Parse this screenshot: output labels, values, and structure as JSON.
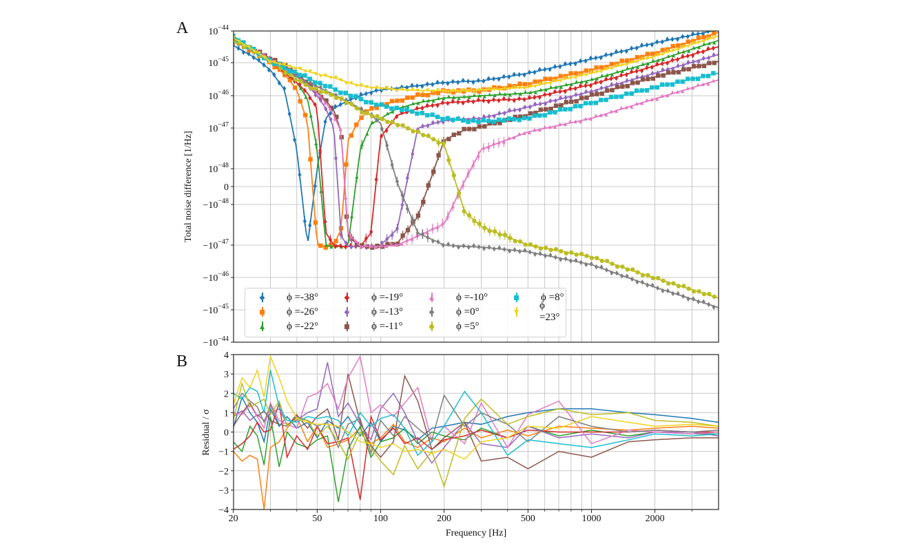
{
  "chart_data": [
    {
      "panel_label": "A",
      "type": "line",
      "xlabel": "Frequency [Hz]",
      "ylabel": "Total noise difference [1/Hz]",
      "xscale": "log",
      "yscale": "symlog",
      "xlim": [
        20,
        4000
      ],
      "ylim": [
        -1e-44,
        1e-44
      ],
      "grid": true,
      "legend_position": "bottom-left",
      "yticks": [
        {
          "value": 1e-44,
          "prefix": "",
          "base": "10",
          "exp": "−44"
        },
        {
          "value": 1e-45,
          "prefix": "",
          "base": "10",
          "exp": "−45"
        },
        {
          "value": 1e-46,
          "prefix": "",
          "base": "10",
          "exp": "−46"
        },
        {
          "value": 1e-47,
          "prefix": "",
          "base": "10",
          "exp": "−47"
        },
        {
          "value": 1e-48,
          "prefix": "",
          "base": "10",
          "exp": "−48"
        },
        {
          "value": 0,
          "prefix": "",
          "base": "0",
          "exp": ""
        },
        {
          "value": -1e-48,
          "prefix": "−",
          "base": "10",
          "exp": "−48"
        },
        {
          "value": -1e-47,
          "prefix": "−",
          "base": "10",
          "exp": "−47"
        },
        {
          "value": -1e-46,
          "prefix": "−",
          "base": "10",
          "exp": "−46"
        },
        {
          "value": -1e-45,
          "prefix": "−",
          "base": "10",
          "exp": "−45"
        },
        {
          "value": -1e-44,
          "prefix": "−",
          "base": "10",
          "exp": "−44"
        }
      ],
      "x": [
        20,
        25,
        30,
        35,
        40,
        45,
        50,
        55,
        60,
        65,
        70,
        80,
        90,
        100,
        120,
        150,
        200,
        250,
        300,
        500,
        1000,
        2000,
        4000
      ],
      "series": [
        {
          "name": "ϕ =-38°",
          "color": "#1f77b4",
          "marker": "diamond",
          "values": [
            3.5e-45,
            1.5e-45,
            6e-46,
            1.5e-46,
            3e-48,
            -1e-47,
            1e-48,
            2e-47,
            4e-47,
            5.5e-47,
            7e-47,
            1e-46,
            1.3e-46,
            1.5e-46,
            1.7e-46,
            2e-46,
            2.5e-46,
            2.7e-46,
            2.8e-46,
            4.8e-46,
            1.3e-45,
            4.2e-45,
            1.1e-44
          ]
        },
        {
          "name": "ϕ =-26°",
          "color": "#ff7f0e",
          "marker": "square",
          "values": [
            5e-45,
            2.2e-45,
            1e-45,
            4.5e-46,
            1.5e-46,
            1.5e-47,
            -1e-47,
            -1.1e-47,
            -1e-47,
            -4e-48,
            5e-48,
            2e-47,
            4e-47,
            5e-47,
            7e-47,
            1e-46,
            1.35e-46,
            1.4e-46,
            1.45e-46,
            2.3e-46,
            6e-46,
            2e-45,
            9e-45
          ]
        },
        {
          "name": "ϕ =-22°",
          "color": "#2ca02c",
          "marker": "triangle",
          "values": [
            5.5e-45,
            2.5e-45,
            1.2e-45,
            6e-46,
            2.5e-46,
            8e-47,
            3e-48,
            -1e-47,
            -1.1e-47,
            -1.1e-47,
            -1.1e-47,
            3e-48,
            1.3e-47,
            2e-47,
            4e-47,
            6e-47,
            8.5e-47,
            9e-47,
            1e-46,
            1.2e-46,
            3e-46,
            1.1e-45,
            5e-45
          ]
        },
        {
          "name": "ϕ =-19°",
          "color": "#d62728",
          "marker": "diamond",
          "values": [
            5e-45,
            2.3e-45,
            1.1e-45,
            5e-46,
            2.5e-46,
            1.2e-46,
            4e-47,
            -5e-48,
            -1e-47,
            -1.1e-47,
            -1.1e-47,
            -1.1e-47,
            -5e-48,
            6e-48,
            2.5e-47,
            4e-47,
            6e-47,
            6.5e-47,
            7e-47,
            8e-47,
            2.2e-46,
            8e-46,
            3.2e-45
          ]
        },
        {
          "name": "ϕ =-13°",
          "color": "#9467bd",
          "marker": "diamond",
          "values": [
            5e-45,
            2.5e-45,
            1.3e-45,
            7e-46,
            4e-46,
            2e-46,
            1e-46,
            4e-47,
            1e-47,
            -6e-48,
            -1.1e-47,
            -1.1e-47,
            -1.1e-47,
            -1e-47,
            -4e-48,
            1e-47,
            1.7e-47,
            1.9e-47,
            2e-47,
            4.5e-47,
            1.35e-46,
            4.8e-46,
            1.8e-45
          ]
        },
        {
          "name": "ϕ =-11°",
          "color": "#8c564b",
          "marker": "square",
          "values": [
            5e-45,
            2.5e-45,
            1.4e-45,
            8e-46,
            4.5e-46,
            2.5e-46,
            1.3e-46,
            7e-47,
            3.5e-47,
            8e-48,
            -6e-48,
            -1.1e-47,
            -1.1e-47,
            -1.1e-47,
            -9e-48,
            -2e-48,
            5e-48,
            9e-48,
            1.1e-47,
            2.6e-47,
            1e-46,
            3.7e-46,
            1.1e-45
          ]
        },
        {
          "name": "ϕ =-10°",
          "color": "#e377c2",
          "marker": "triangle",
          "values": [
            5e-45,
            2.5e-45,
            1.3e-45,
            7e-46,
            4e-46,
            2.2e-46,
            1.2e-46,
            6e-47,
            2.5e-47,
            8e-48,
            -5e-48,
            -1.1e-47,
            -1.1e-47,
            -1.1e-47,
            -1e-47,
            -6e-48,
            -3e-48,
            3e-49,
            3e-48,
            8e-48,
            2e-47,
            8e-47,
            3e-46
          ]
        },
        {
          "name": "ϕ =0°",
          "color": "#7f7f7f",
          "marker": "diamond",
          "values": [
            5e-45,
            2.3e-45,
            1.1e-45,
            6e-46,
            3.7e-46,
            2.6e-46,
            1.9e-46,
            1.4e-46,
            1.1e-46,
            8e-47,
            6.5e-47,
            4e-47,
            2.5e-47,
            1.4e-47,
            2e-49,
            -5e-48,
            -1e-47,
            -1.1e-47,
            -1.15e-47,
            -1.6e-47,
            -4e-47,
            -2e-46,
            -8.5e-46
          ]
        },
        {
          "name": "ϕ =5°",
          "color": "#bcbd22",
          "marker": "circle",
          "values": [
            5e-45,
            2.3e-45,
            1.1e-45,
            5.5e-46,
            3e-46,
            2e-46,
            1.5e-46,
            1.2e-46,
            1e-46,
            8e-47,
            6e-47,
            3.5e-47,
            2.5e-47,
            2e-47,
            1.3e-47,
            8e-48,
            4e-48,
            -1.5e-48,
            -3.5e-48,
            -1e-47,
            -2.3e-47,
            -1.05e-46,
            -4.3e-46
          ]
        },
        {
          "name": "ϕ =8°",
          "color": "#17becf",
          "marker": "square",
          "values": [
            7e-45,
            2.5e-45,
            1.1e-45,
            7e-46,
            4.8e-46,
            3.5e-46,
            2.5e-46,
            2e-46,
            1.6e-46,
            1.3e-46,
            1.1e-46,
            8e-47,
            6e-47,
            5e-47,
            4e-47,
            3e-47,
            2e-47,
            1.7e-47,
            1.6e-47,
            2e-47,
            6e-47,
            1.8e-46,
            4.8e-46
          ]
        },
        {
          "name": "ϕ =23°",
          "color": "#f0d21a",
          "marker": "triangle-down",
          "values": [
            6e-45,
            2.5e-45,
            1.1e-45,
            8.5e-46,
            7e-46,
            5.5e-46,
            4.5e-46,
            4e-46,
            3.5e-46,
            3e-46,
            2.5e-46,
            2e-46,
            1.8e-46,
            1.7e-46,
            1.55e-46,
            1.45e-46,
            1.4e-46,
            1.4e-46,
            1.5e-46,
            1.8e-46,
            4.8e-46,
            1.6e-45,
            7e-45
          ]
        }
      ]
    },
    {
      "panel_label": "B",
      "type": "line",
      "xlabel": "Frequency [Hz]",
      "ylabel": "Residual / σ",
      "xscale": "log",
      "xlim": [
        20,
        4000
      ],
      "ylim": [
        -4,
        4
      ],
      "grid": true,
      "xticks": [
        "20",
        "50",
        "100",
        "200",
        "500",
        "1000",
        "2000"
      ],
      "xtick_values": [
        20,
        50,
        100,
        200,
        500,
        1000,
        2000
      ],
      "yticks": [
        "4",
        "3",
        "2",
        "1",
        "0",
        "−1",
        "−2",
        "−3",
        "−4"
      ],
      "ytick_values": [
        4,
        3,
        2,
        1,
        0,
        -1,
        -2,
        -3,
        -4
      ],
      "x": [
        20,
        22,
        24,
        26,
        28,
        30,
        33,
        36,
        40,
        45,
        50,
        56,
        63,
        70,
        80,
        90,
        100,
        115,
        130,
        150,
        175,
        200,
        250,
        300,
        400,
        500,
        700,
        1000,
        1500,
        2000,
        3000,
        4000
      ],
      "series": [
        {
          "color": "#1f77b4",
          "values": [
            0.2,
            1.8,
            1.0,
            0.5,
            -0.5,
            1.2,
            0.3,
            0.8,
            0.2,
            0.5,
            -0.3,
            0.6,
            0.2,
            0.8,
            -0.2,
            0.5,
            -0.5,
            0.3,
            0.1,
            -0.4,
            0.2,
            0.3,
            0.5,
            0.4,
            0.8,
            1.0,
            1.2,
            1.2,
            1.0,
            0.9,
            0.7,
            0.5
          ]
        },
        {
          "color": "#ff7f0e",
          "values": [
            -1.0,
            -1.5,
            -1.2,
            -1.4,
            -4.0,
            -0.8,
            -0.5,
            0.2,
            0.8,
            -0.5,
            0.3,
            -0.8,
            -0.6,
            -0.4,
            0.2,
            -0.6,
            -0.3,
            0.4,
            -0.5,
            -0.8,
            -0.3,
            -0.5,
            0.2,
            -0.3,
            0.1,
            -0.2,
            0.3,
            0.2,
            0.1,
            0.2,
            0.3,
            0.2
          ]
        },
        {
          "color": "#2ca02c",
          "values": [
            -0.5,
            -1.0,
            0.3,
            -0.2,
            -1.7,
            0.8,
            -1.8,
            0.0,
            -0.6,
            -0.8,
            -0.4,
            -0.2,
            -3.6,
            -0.9,
            0.3,
            -1.3,
            -0.5,
            -0.3,
            0.2,
            -0.6,
            0.0,
            -0.2,
            -0.4,
            0.2,
            -0.3,
            0.3,
            -0.2,
            0.1,
            -0.2,
            0.0,
            -0.1,
            -0.1
          ]
        },
        {
          "color": "#d62728",
          "values": [
            -0.9,
            -0.6,
            -0.2,
            0.5,
            0.0,
            0.1,
            1.5,
            -1.3,
            -0.2,
            -0.9,
            0.3,
            -0.6,
            -0.5,
            -0.3,
            -3.5,
            0.8,
            -0.4,
            0.2,
            -0.6,
            -0.3,
            -0.9,
            -0.4,
            -0.2,
            0.1,
            -0.3,
            0.1,
            0.0,
            0.0,
            0.0,
            0.1,
            0.0,
            0.0
          ]
        },
        {
          "color": "#9467bd",
          "values": [
            0.8,
            1.1,
            0.6,
            0.9,
            0.6,
            1.0,
            1.2,
            0.4,
            0.6,
            1.0,
            1.2,
            3.6,
            0.8,
            1.5,
            0.4,
            -0.4,
            1.2,
            2.0,
            1.0,
            -0.5,
            -1.6,
            -0.8,
            0.5,
            -0.6,
            -0.8,
            0.3,
            -0.3,
            -0.1,
            -0.3,
            0.0,
            0.0,
            -0.2
          ]
        },
        {
          "color": "#8c564b",
          "values": [
            0.3,
            1.0,
            1.5,
            0.8,
            1.1,
            0.6,
            0.4,
            0.3,
            0.9,
            0.2,
            0.8,
            1.2,
            -0.4,
            3.0,
            0.5,
            -0.7,
            -1.3,
            -0.5,
            2.9,
            1.6,
            -0.9,
            -0.3,
            0.5,
            -1.5,
            -1.3,
            -1.9,
            -1.0,
            -1.3,
            -0.5,
            -0.4,
            -0.3,
            -0.3
          ]
        },
        {
          "color": "#e377c2",
          "values": [
            1.0,
            0.9,
            1.4,
            0.8,
            0.2,
            1.5,
            0.6,
            0.4,
            0.2,
            1.8,
            2.0,
            2.5,
            1.2,
            2.8,
            3.9,
            1.0,
            1.4,
            0.8,
            1.5,
            2.3,
            -0.5,
            0.3,
            -0.6,
            1.5,
            -0.8,
            0.9,
            1.6,
            -0.6,
            0.1,
            0.0,
            -0.1,
            0.0
          ]
        },
        {
          "color": "#7f7f7f",
          "values": [
            1.2,
            2.0,
            1.6,
            1.3,
            0.5,
            1.4,
            0.4,
            0.3,
            0.8,
            0.6,
            0.3,
            0.5,
            -0.8,
            0.4,
            0.7,
            -1.1,
            0.6,
            -0.2,
            0.8,
            0.2,
            -0.4,
            1.9,
            0.3,
            1.0,
            0.4,
            -0.5,
            0.8,
            0.3,
            0.0,
            0.1,
            0.0,
            0.1
          ]
        },
        {
          "color": "#bcbd22",
          "values": [
            0.6,
            2.5,
            1.3,
            1.5,
            1.7,
            0.9,
            1.6,
            0.3,
            0.7,
            0.6,
            -0.2,
            0.3,
            -0.5,
            -1.4,
            0.0,
            -0.8,
            -1.5,
            -2.2,
            -0.7,
            -1.9,
            -1.0,
            -2.8,
            0.7,
            1.7,
            0.4,
            0.8,
            1.2,
            0.9,
            1.0,
            0.6,
            0.5,
            0.3
          ]
        },
        {
          "color": "#17becf",
          "values": [
            2.0,
            1.7,
            2.3,
            2.1,
            1.0,
            3.2,
            1.3,
            0.6,
            0.5,
            0.8,
            0.7,
            0.8,
            0.6,
            -0.2,
            1.0,
            0.3,
            0.7,
            0.9,
            0.2,
            -1.2,
            -0.5,
            0.3,
            2.1,
            1.0,
            -1.2,
            -0.4,
            -0.6,
            -0.8,
            -0.4,
            -0.1,
            -0.2,
            -0.1
          ]
        },
        {
          "color": "#f0d21a",
          "values": [
            1.4,
            2.8,
            2.3,
            3.2,
            1.8,
            3.9,
            2.8,
            1.6,
            0.7,
            0.5,
            0.4,
            0.4,
            0.3,
            0.0,
            -0.5,
            -0.6,
            -0.8,
            -0.6,
            -1.0,
            -0.9,
            -1.1,
            -0.9,
            -1.4,
            -0.5,
            -0.3,
            0.3,
            0.2,
            0.8,
            0.5,
            0.3,
            0.4,
            0.3
          ]
        }
      ]
    }
  ]
}
